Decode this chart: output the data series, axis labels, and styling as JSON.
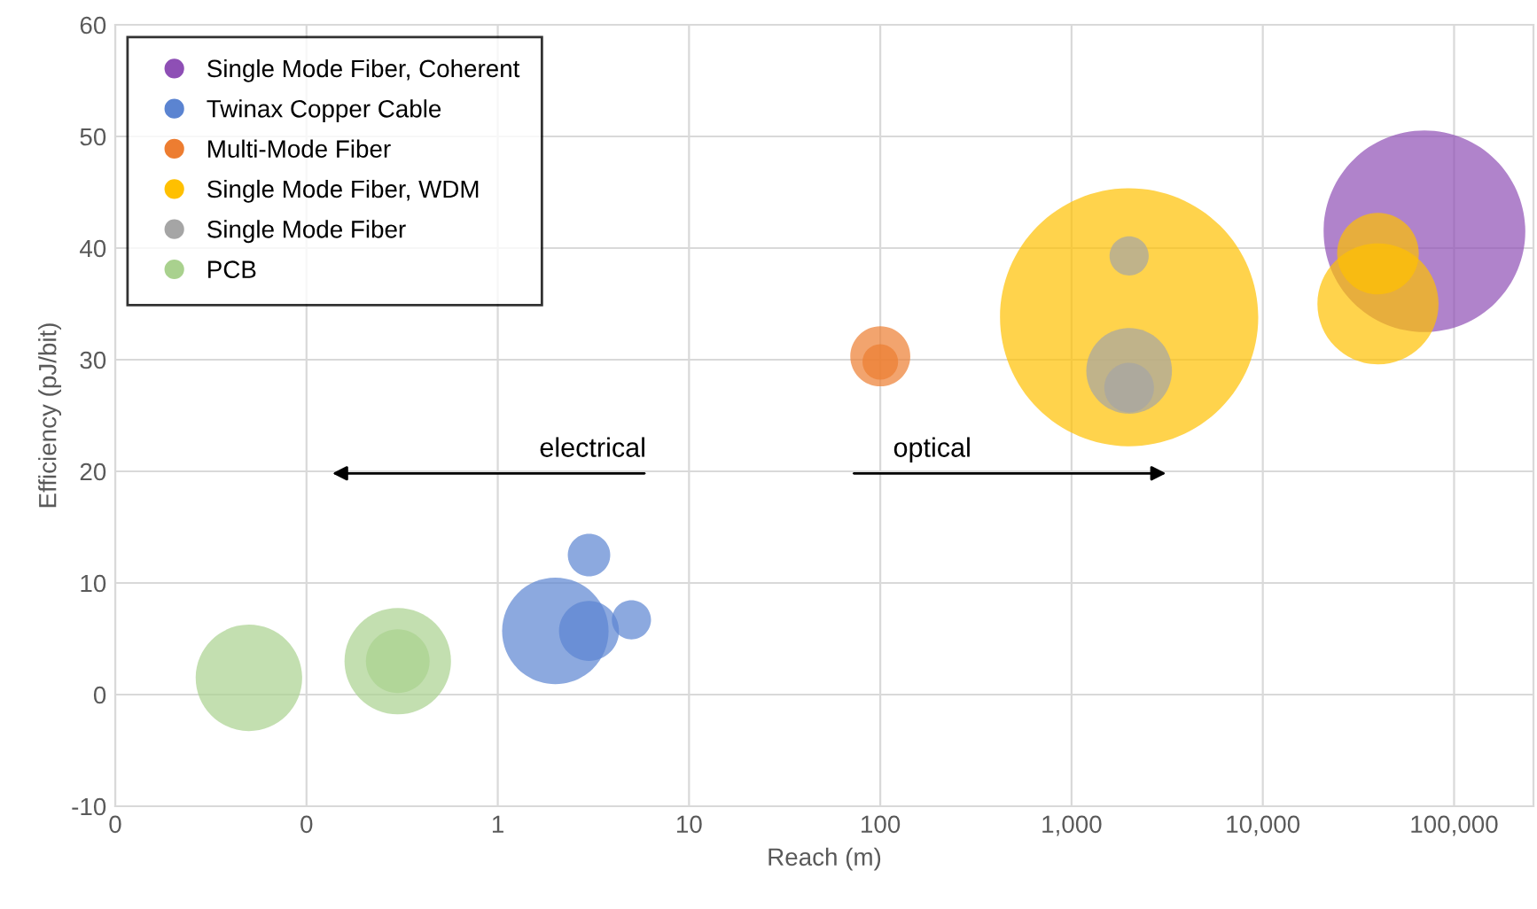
{
  "chart_data": {
    "type": "bubble",
    "xlabel": "Reach (m)",
    "ylabel": "Efficiency (pJ/bit)",
    "log": "x",
    "xlim": [
      0.01,
      260000
    ],
    "xticks": [
      {
        "value": 0.01,
        "label": "0"
      },
      {
        "value": 0.1,
        "label": "0"
      },
      1,
      10,
      100,
      {
        "value": 1000,
        "label": "1,000"
      },
      {
        "value": 10000,
        "label": "10,000"
      },
      {
        "value": 100000,
        "label": "100,000"
      }
    ],
    "ylim": [
      -10,
      60
    ],
    "yticks": [
      -10,
      0,
      10,
      20,
      30,
      40,
      50,
      60
    ],
    "grid": true,
    "legend": "top left",
    "annotations": [
      "electrical",
      "optical"
    ],
    "series": [
      {
        "name": "Single Mode Fiber, Coherent",
        "color": "#8e4fb5",
        "x": [
          70000
        ],
        "values": [
          41.5
        ],
        "sizes": [
          0.61
        ]
      },
      {
        "name": "Twinax Copper Cable",
        "color": "#5b84d1",
        "x": [
          2,
          3,
          5,
          3
        ],
        "values": [
          5.7,
          5.7,
          6.7,
          12.5
        ],
        "sizes": [
          0.17,
          0.054,
          0.023,
          0.027
        ]
      },
      {
        "name": "Multi-Mode Fiber",
        "color": "#ed7d31",
        "x": [
          100,
          100
        ],
        "values": [
          30.3,
          29.8
        ],
        "sizes": [
          0.054,
          0.019
        ]
      },
      {
        "name": "Single Mode Fiber, WDM",
        "color": "#ffc000",
        "x": [
          2000,
          40000,
          40000
        ],
        "values": [
          33.8,
          35,
          39.5
        ],
        "sizes": [
          1,
          0.22,
          0.1
        ]
      },
      {
        "name": "Single Mode Fiber",
        "color": "#a5a5a5",
        "x": [
          2000,
          2000,
          2000
        ],
        "values": [
          39.3,
          29,
          27.5
        ],
        "sizes": [
          0.023,
          0.11,
          0.037
        ]
      },
      {
        "name": "PCB",
        "color": "#a9d18e",
        "x": [
          0.05,
          0.3,
          0.3
        ],
        "values": [
          1.5,
          3,
          3
        ],
        "sizes": [
          0.17,
          0.061,
          0.17
        ]
      }
    ]
  }
}
